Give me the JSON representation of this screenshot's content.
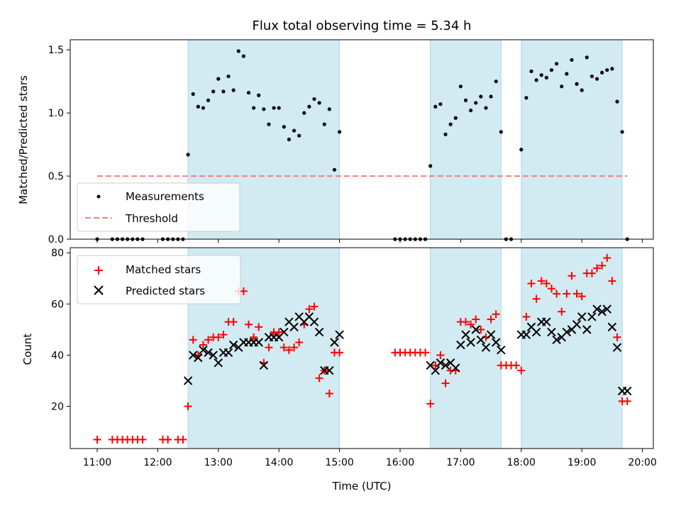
{
  "chart_data": {
    "type": "scatter",
    "title": "Flux total observing time = 5.34 h",
    "xlabel": "Time (UTC)",
    "x_tick_labels": [
      "11:00",
      "12:00",
      "13:00",
      "14:00",
      "15:00",
      "16:00",
      "17:00",
      "18:00",
      "19:00",
      "20:00"
    ],
    "shaded_intervals": [
      [
        "12:30",
        "15:00"
      ],
      [
        "16:30",
        "17:40"
      ],
      [
        "18:00",
        "19:40"
      ]
    ],
    "shade_color": "#add8e6",
    "top_panel": {
      "ylabel": "Matched/Predicted stars",
      "ylim": [
        0,
        1.58
      ],
      "y_tick_labels": [
        "0.0",
        "0.5",
        "1.0",
        "1.5"
      ],
      "legend_placement": "lower-left",
      "threshold": {
        "name": "Threshold",
        "value": 0.5,
        "x_range": [
          "11:00",
          "19:45"
        ],
        "color": "#f08080",
        "style": "dashed"
      },
      "measurements": {
        "name": "Measurements",
        "color": "#000000",
        "x": [
          "11:00",
          "11:15",
          "11:20",
          "11:25",
          "11:30",
          "11:35",
          "11:40",
          "11:45",
          "12:05",
          "12:10",
          "12:15",
          "12:20",
          "12:25",
          "12:30",
          "12:35",
          "12:40",
          "12:45",
          "12:50",
          "12:55",
          "13:00",
          "13:05",
          "13:10",
          "13:15",
          "13:20",
          "13:25",
          "13:30",
          "13:35",
          "13:40",
          "13:45",
          "13:50",
          "13:55",
          "14:00",
          "14:05",
          "14:10",
          "14:15",
          "14:20",
          "14:25",
          "14:30",
          "14:35",
          "14:40",
          "14:45",
          "14:50",
          "14:55",
          "15:00",
          "15:55",
          "16:00",
          "16:05",
          "16:10",
          "16:15",
          "16:20",
          "16:25",
          "16:30",
          "16:35",
          "16:40",
          "16:45",
          "16:50",
          "16:55",
          "17:00",
          "17:05",
          "17:10",
          "17:15",
          "17:20",
          "17:25",
          "17:30",
          "17:35",
          "17:40",
          "17:45",
          "17:50",
          "18:00",
          "18:05",
          "18:10",
          "18:15",
          "18:20",
          "18:25",
          "18:30",
          "18:35",
          "18:40",
          "18:45",
          "18:50",
          "18:55",
          "19:00",
          "19:05",
          "19:10",
          "19:15",
          "19:20",
          "19:25",
          "19:30",
          "19:35",
          "19:40",
          "19:45"
        ],
        "y": [
          0,
          0,
          0,
          0,
          0,
          0,
          0,
          0,
          0,
          0,
          0,
          0,
          0,
          0.67,
          1.15,
          1.05,
          1.04,
          1.1,
          1.17,
          1.27,
          1.17,
          1.29,
          1.18,
          1.49,
          1.45,
          1.16,
          1.04,
          1.14,
          1.03,
          0.91,
          1.04,
          1.04,
          0.89,
          0.79,
          0.86,
          0.82,
          1.0,
          1.05,
          1.11,
          1.08,
          0.91,
          1.03,
          0.55,
          0.85,
          0,
          0,
          0,
          0,
          0,
          0,
          0,
          0.58,
          1.05,
          1.07,
          0.83,
          0.91,
          0.96,
          1.21,
          1.1,
          1.02,
          1.08,
          1.13,
          1.04,
          1.13,
          1.25,
          0.85,
          0,
          0,
          0.71,
          1.12,
          1.33,
          1.26,
          1.3,
          1.28,
          1.34,
          1.39,
          1.21,
          1.31,
          1.42,
          1.23,
          1.18,
          1.44,
          1.29,
          1.27,
          1.32,
          1.34,
          1.35,
          1.09,
          0.85,
          0
        ]
      }
    },
    "bottom_panel": {
      "ylabel": "Count",
      "ylim": [
        3.5,
        82
      ],
      "y_tick_labels": [
        "20",
        "40",
        "60",
        "80"
      ],
      "legend_placement": "upper-left",
      "series": [
        {
          "name": "Matched stars",
          "marker": "plus",
          "color": "#ff0000",
          "x": [
            "11:00",
            "11:15",
            "11:20",
            "11:25",
            "11:30",
            "11:35",
            "11:40",
            "11:45",
            "12:05",
            "12:10",
            "12:20",
            "12:25",
            "12:30",
            "12:35",
            "12:40",
            "12:45",
            "12:50",
            "12:55",
            "13:00",
            "13:05",
            "13:10",
            "13:15",
            "13:20",
            "13:25",
            "13:30",
            "13:35",
            "13:40",
            "13:45",
            "13:50",
            "13:55",
            "14:00",
            "14:05",
            "14:10",
            "14:15",
            "14:20",
            "14:25",
            "14:30",
            "14:35",
            "14:40",
            "14:45",
            "14:50",
            "14:55",
            "15:00",
            "15:55",
            "16:00",
            "16:05",
            "16:10",
            "16:15",
            "16:20",
            "16:25",
            "16:30",
            "16:35",
            "16:40",
            "16:45",
            "16:50",
            "16:55",
            "17:00",
            "17:05",
            "17:10",
            "17:15",
            "17:20",
            "17:25",
            "17:30",
            "17:35",
            "17:40",
            "17:45",
            "17:50",
            "17:55",
            "18:00",
            "18:05",
            "18:10",
            "18:15",
            "18:20",
            "18:25",
            "18:30",
            "18:35",
            "18:40",
            "18:45",
            "18:50",
            "18:55",
            "19:00",
            "19:05",
            "19:10",
            "19:15",
            "19:20",
            "19:25",
            "19:30",
            "19:35",
            "19:40",
            "19:45"
          ],
          "y": [
            7,
            7,
            7,
            7,
            7,
            7,
            7,
            7,
            7,
            7,
            7,
            7,
            20,
            46,
            40,
            44,
            46,
            47,
            47,
            48,
            53,
            53,
            65,
            65,
            52,
            47,
            51,
            37,
            43,
            49,
            49,
            43,
            42,
            43,
            45,
            52,
            58,
            59,
            31,
            34,
            25,
            41,
            41,
            41,
            41,
            41,
            41,
            41,
            41,
            41,
            21,
            36,
            40,
            29,
            34,
            34,
            53,
            53,
            52,
            54,
            50,
            47,
            54,
            56,
            36,
            36,
            36,
            36,
            34,
            55,
            68,
            62,
            69,
            68,
            66,
            64,
            57,
            64,
            71,
            64,
            63,
            72,
            72,
            74,
            75,
            78,
            69,
            47,
            22,
            22
          ]
        },
        {
          "name": "Predicted stars",
          "marker": "x",
          "color": "#000000",
          "x": [
            "12:30",
            "12:35",
            "12:40",
            "12:45",
            "12:50",
            "12:55",
            "13:00",
            "13:05",
            "13:10",
            "13:15",
            "13:20",
            "13:25",
            "13:30",
            "13:35",
            "13:40",
            "13:45",
            "13:50",
            "13:55",
            "14:00",
            "14:05",
            "14:10",
            "14:15",
            "14:20",
            "14:25",
            "14:30",
            "14:35",
            "14:40",
            "14:45",
            "14:50",
            "14:55",
            "15:00",
            "16:30",
            "16:35",
            "16:40",
            "16:45",
            "16:50",
            "16:55",
            "17:00",
            "17:05",
            "17:10",
            "17:15",
            "17:20",
            "17:25",
            "17:30",
            "17:35",
            "17:40",
            "18:00",
            "18:05",
            "18:10",
            "18:15",
            "18:20",
            "18:25",
            "18:30",
            "18:35",
            "18:40",
            "18:45",
            "18:50",
            "18:55",
            "19:00",
            "19:05",
            "19:10",
            "19:15",
            "19:20",
            "19:25",
            "19:30",
            "19:35",
            "19:40",
            "19:45"
          ],
          "y": [
            30,
            40,
            39,
            42,
            41,
            40,
            37,
            41,
            41,
            44,
            43,
            45,
            45,
            45,
            45,
            36,
            47,
            47,
            47,
            49,
            53,
            51,
            55,
            53,
            55,
            53,
            49,
            34,
            34,
            45,
            48,
            36,
            34,
            37,
            36,
            37,
            35,
            44,
            48,
            45,
            50,
            46,
            43,
            48,
            45,
            42,
            48,
            48,
            51,
            49,
            53,
            53,
            49,
            46,
            47,
            49,
            50,
            52,
            55,
            50,
            55,
            58,
            57,
            58,
            51,
            43,
            26,
            26
          ]
        }
      ]
    }
  }
}
